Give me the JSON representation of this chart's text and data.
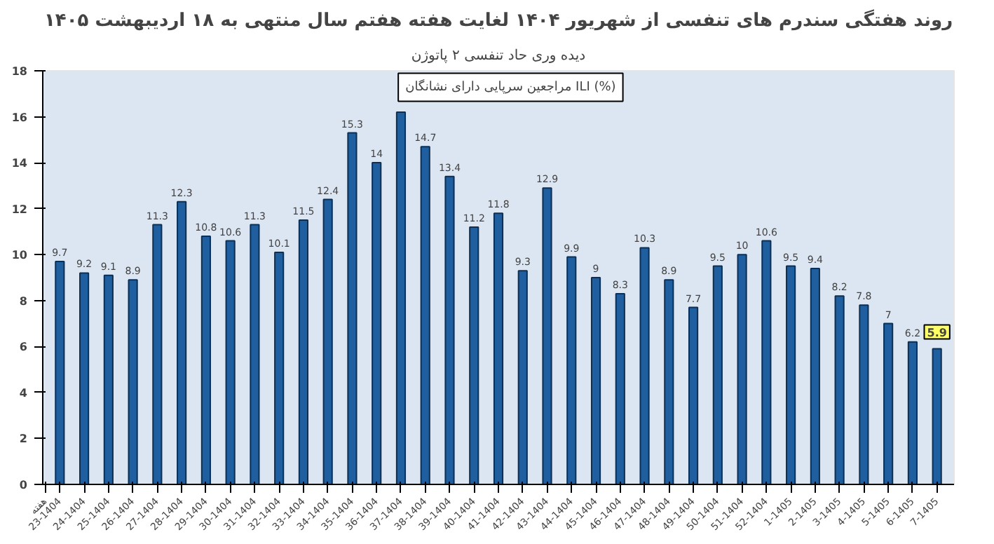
{
  "chart_data": {
    "type": "bar",
    "title": "روند هفتگی سندرم های تنفسی از شهریور ۱۴۰۴ لغایت هفته هفتم سال منتهی به ۱۸ اردیبهشت ۱۴۰۵",
    "subtitle": "دیده وری حاد تنفسی ۲ پاتوژن",
    "categories": [
      "23-1404",
      "24-1404",
      "25-1404",
      "26-1404",
      "27-1404",
      "28-1404",
      "29-1404",
      "30-1404",
      "31-1404",
      "32-1404",
      "33-1404",
      "34-1404",
      "35-1404",
      "36-1404",
      "37-1404",
      "38-1404",
      "39-1404",
      "40-1404",
      "41-1404",
      "42-1404",
      "43-1404",
      "44-1404",
      "45-1404",
      "46-1404",
      "47-1404",
      "48-1404",
      "49-1404",
      "50-1404",
      "51-1404",
      "52-1404",
      "1-1405",
      "2-1405",
      "3-1405",
      "4-1405",
      "5-1405",
      "6-1405",
      "7-1405"
    ],
    "values": [
      9.7,
      9.2,
      9.1,
      8.9,
      11.3,
      12.3,
      10.8,
      10.6,
      11.3,
      10.1,
      11.5,
      12.4,
      15.3,
      14,
      16.2,
      14.7,
      13.4,
      11.2,
      11.8,
      9.3,
      12.9,
      9.9,
      9,
      8.3,
      10.3,
      8.9,
      7.7,
      9.5,
      10,
      10.6,
      9.5,
      9.4,
      8.2,
      7.8,
      7,
      6.2,
      5.9
    ],
    "value_labels": [
      "9.7",
      "9.2",
      "9.1",
      "8.9",
      "11.3",
      "12.3",
      "10.8",
      "10.6",
      "11.3",
      "10.1",
      "11.5",
      "12.4",
      "15.3",
      "14",
      null,
      "14.7",
      "13.4",
      "11.2",
      "11.8",
      "9.3",
      "12.9",
      "9.9",
      "9",
      "8.3",
      "10.3",
      "8.9",
      "7.7",
      "9.5",
      "10",
      "10.6",
      "9.5",
      "9.4",
      "8.2",
      "7.8",
      "7",
      "6.2",
      "5.9"
    ],
    "color": "#1f5f9f",
    "ylim": [
      0,
      18
    ],
    "yticks": [
      0,
      2,
      4,
      6,
      8,
      10,
      12,
      14,
      16,
      18
    ],
    "grid": false,
    "annotations": [
      "مراجعین سرپایی دارای نشانگان ILI (%)",
      "هفته"
    ]
  }
}
